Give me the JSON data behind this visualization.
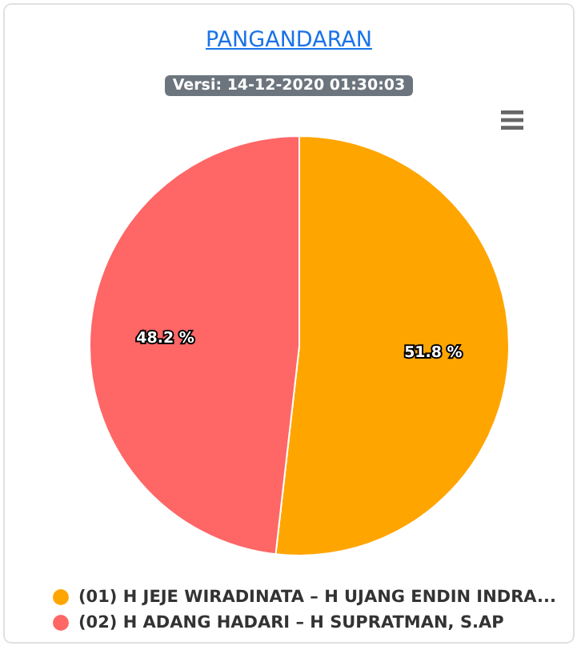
{
  "chart_data": {
    "type": "pie",
    "title": "PANGANDARAN",
    "subtitle": "Versi: 14-12-2020 01:30:03",
    "categories": [
      "(01) H JEJE WIRADINATA – H UJANG ENDIN INDRA...",
      "(02) H ADANG HADARI – H SUPRATMAN, S.AP"
    ],
    "values": [
      51.8,
      48.2
    ],
    "colors": [
      "#ffa500",
      "#ff6666"
    ],
    "value_labels": [
      "51.8 %",
      "48.2 %"
    ],
    "legend": "bottom"
  }
}
